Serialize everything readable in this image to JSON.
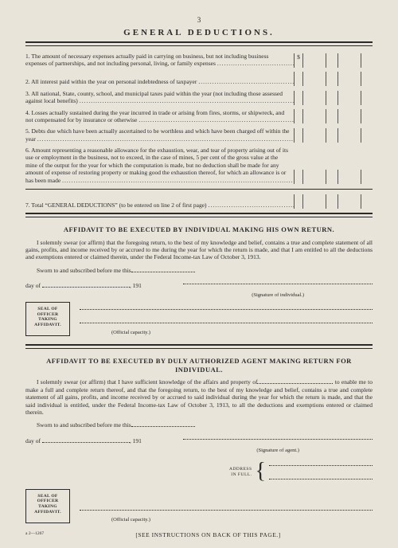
{
  "page_number": "3",
  "title": "GENERAL DEDUCTIONS.",
  "deductions": [
    {
      "num": "1.",
      "text": "The amount of necessary expenses actually paid in carrying on business, but not including business expenses of partnerships, and not including personal, living, or family expenses",
      "currency": "$"
    },
    {
      "num": "2.",
      "text": "All interest paid within the year on personal indebtedness of taxpayer",
      "currency": ""
    },
    {
      "num": "3.",
      "text": "All national, State, county, school, and municipal taxes paid within the year (not including those assessed against local benefits)",
      "currency": ""
    },
    {
      "num": "4.",
      "text": "Losses actually sustained during the year incurred in trade or arising from fires, storms, or shipwreck, and not compensated for by insurance or otherwise",
      "currency": ""
    },
    {
      "num": "5.",
      "text": "Debts due which have been actually ascertained to be worthless and which have been charged off within the year",
      "currency": ""
    },
    {
      "num": "6.",
      "text": "Amount representing a reasonable allowance for the exhaustion, wear, and tear of property arising out of its use or employment in the business, not to exceed, in the case of mines, 5 per cent of the gross value at the mine of the output for the year for which the computation is made, but no deduction shall be made for any amount of expense of restoring property or making good the exhaustion thereof, for which an allowance is or has been made",
      "currency": ""
    }
  ],
  "total_row": {
    "num": "7.",
    "text": "Total “GENERAL DEDUCTIONS” (to be entered on line 2 of first page)"
  },
  "affidavit1": {
    "heading": "AFFIDAVIT TO BE EXECUTED BY INDIVIDUAL MAKING HIS OWN RETURN.",
    "body": "I solemnly swear (or affirm) that the foregoing return, to the best of my knowledge and belief, contains a true and complete statement of all gains, profits, and income received by or accrued to me during the year for which the return is made, and that I am entitled to all the deductions and exemptions entered or claimed therein, under the Federal Income-tax Law of October 3, 1913.",
    "sworn": "Sworn to and subscribed before me this",
    "day_of": "day of",
    "year_prefix": ", 191",
    "sig_cap": "(Signature of individual.)",
    "seal": "SEAL OF\nOFFICER\nTAKING\nAFFIDAVIT.",
    "official": "(Official capacity.)"
  },
  "affidavit2": {
    "heading": "AFFIDAVIT TO BE EXECUTED BY DULY AUTHORIZED AGENT MAKING RETURN FOR INDIVIDUAL.",
    "body_pre": "I solemnly swear (or affirm) that I have sufficient knowledge of the affairs and property of",
    "body_post": "to enable me to make a full and complete return thereof, and that the foregoing return, to the best of my knowledge and belief, contains a true and complete statement of all gains, profits, and income received by or accrued to said individual during the year for which the return is made, and that the said individual is entitled, under the Federal Income-tax Law of October 3, 1913, to all the deductions and exemptions entered or claimed therein.",
    "sworn": "Sworn to and subscribed before me this",
    "day_of": "day of",
    "year_prefix": ", 191",
    "sig_cap": "(Signature of agent.)",
    "address": "ADDRESS\nIN FULL.",
    "seal": "SEAL OF\nOFFICER\nTAKING\nAFFIDAVIT.",
    "official": "(Official capacity.)"
  },
  "footer": "[SEE INSTRUCTIONS ON BACK OF THIS PAGE.]",
  "form_no": "a 2—1267",
  "colors": {
    "bg": "#e8e4da",
    "ink": "#2a2a2a"
  }
}
